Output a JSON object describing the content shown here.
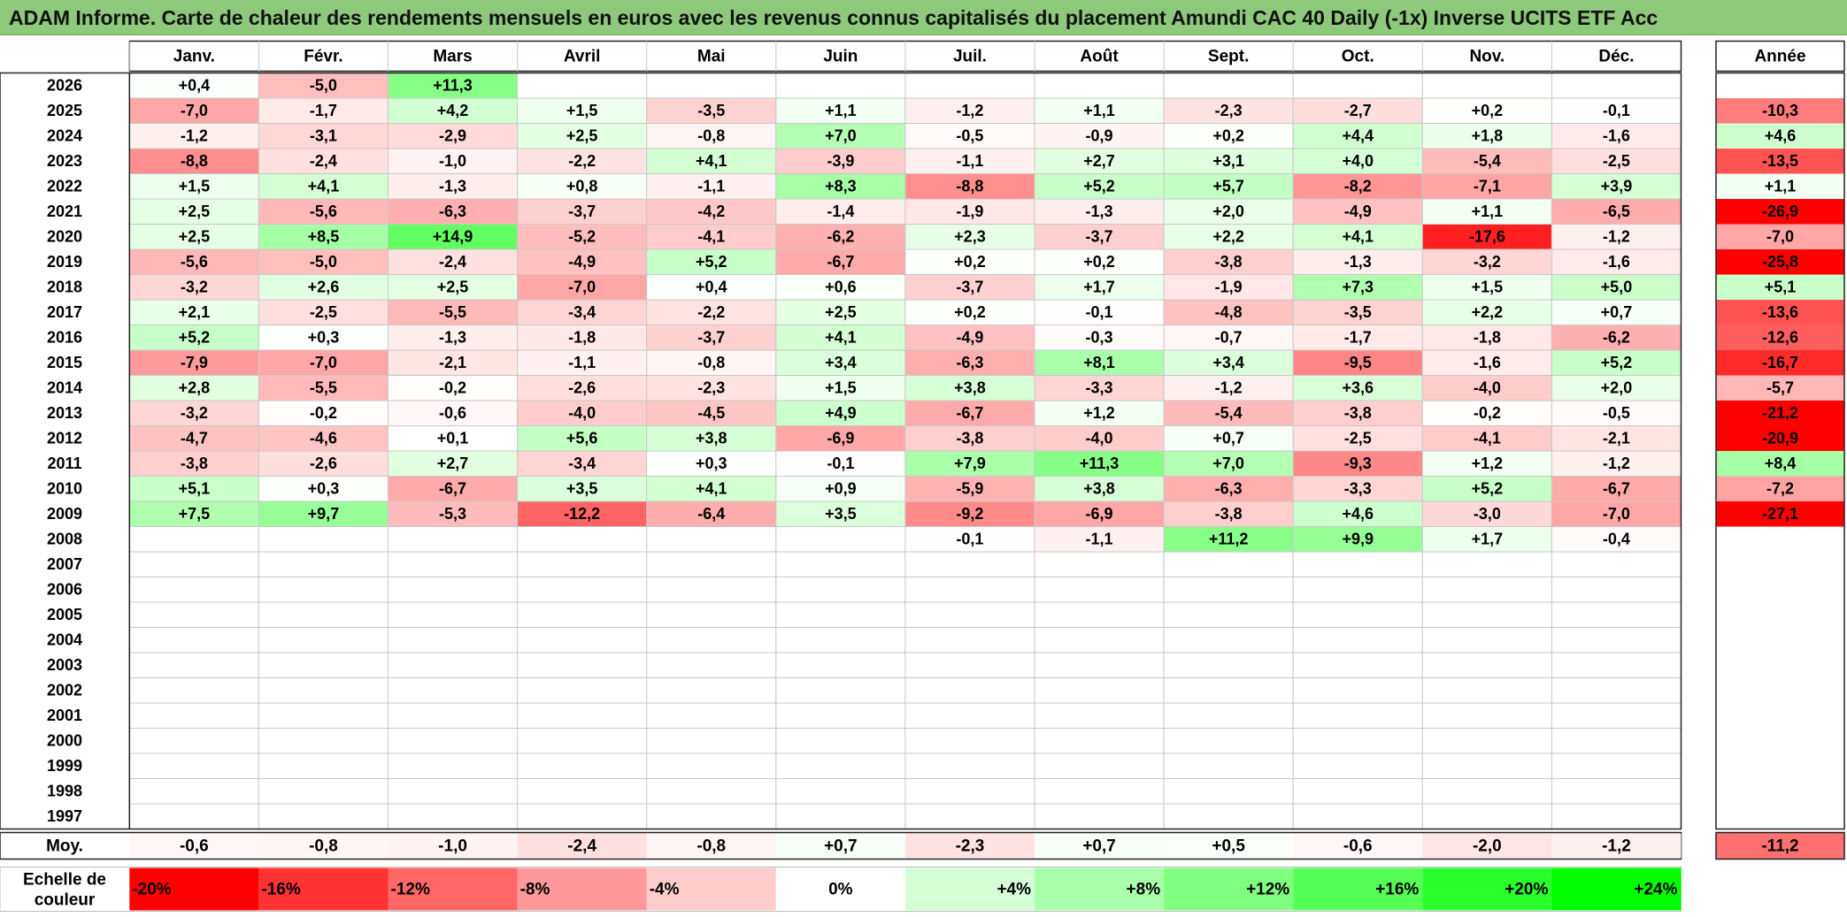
{
  "title": "ADAM Informe. Carte de chaleur des rendements mensuels en euros avec les revenus connus capitalisés du placement Amundi CAC 40 Daily (-1x) Inverse UCITS ETF Acc",
  "chart_data": {
    "type": "heatmap",
    "columns": [
      "Janv.",
      "Févr.",
      "Mars",
      "Avril",
      "Mai",
      "Juin",
      "Juil.",
      "Août",
      "Sept.",
      "Oct.",
      "Nov.",
      "Déc."
    ],
    "year_header": "Année",
    "rows": [
      {
        "year": "2026",
        "months": [
          "+0,4",
          "-5,0",
          "+11,3",
          "",
          "",
          "",
          "",
          "",
          "",
          "",
          "",
          ""
        ],
        "annual": ""
      },
      {
        "year": "2025",
        "months": [
          "-7,0",
          "-1,7",
          "+4,2",
          "+1,5",
          "-3,5",
          "+1,1",
          "-1,2",
          "+1,1",
          "-2,3",
          "-2,7",
          "+0,2",
          "-0,1"
        ],
        "annual": "-10,3"
      },
      {
        "year": "2024",
        "months": [
          "-1,2",
          "-3,1",
          "-2,9",
          "+2,5",
          "-0,8",
          "+7,0",
          "-0,5",
          "-0,9",
          "+0,2",
          "+4,4",
          "+1,8",
          "-1,6"
        ],
        "annual": "+4,6"
      },
      {
        "year": "2023",
        "months": [
          "-8,8",
          "-2,4",
          "-1,0",
          "-2,2",
          "+4,1",
          "-3,9",
          "-1,1",
          "+2,7",
          "+3,1",
          "+4,0",
          "-5,4",
          "-2,5"
        ],
        "annual": "-13,5"
      },
      {
        "year": "2022",
        "months": [
          "+1,5",
          "+4,1",
          "-1,3",
          "+0,8",
          "-1,1",
          "+8,3",
          "-8,8",
          "+5,2",
          "+5,7",
          "-8,2",
          "-7,1",
          "+3,9"
        ],
        "annual": "+1,1"
      },
      {
        "year": "2021",
        "months": [
          "+2,5",
          "-5,6",
          "-6,3",
          "-3,7",
          "-4,2",
          "-1,4",
          "-1,9",
          "-1,3",
          "+2,0",
          "-4,9",
          "+1,1",
          "-6,5"
        ],
        "annual": "-26,9"
      },
      {
        "year": "2020",
        "months": [
          "+2,5",
          "+8,5",
          "+14,9",
          "-5,2",
          "-4,1",
          "-6,2",
          "+2,3",
          "-3,7",
          "+2,2",
          "+4,1",
          "-17,6",
          "-1,2"
        ],
        "annual": "-7,0"
      },
      {
        "year": "2019",
        "months": [
          "-5,6",
          "-5,0",
          "-2,4",
          "-4,9",
          "+5,2",
          "-6,7",
          "+0,2",
          "+0,2",
          "-3,8",
          "-1,3",
          "-3,2",
          "-1,6"
        ],
        "annual": "-25,8"
      },
      {
        "year": "2018",
        "months": [
          "-3,2",
          "+2,6",
          "+2,5",
          "-7,0",
          "+0,4",
          "+0,6",
          "-3,7",
          "+1,7",
          "-1,9",
          "+7,3",
          "+1,5",
          "+5,0"
        ],
        "annual": "+5,1"
      },
      {
        "year": "2017",
        "months": [
          "+2,1",
          "-2,5",
          "-5,5",
          "-3,4",
          "-2,2",
          "+2,5",
          "+0,2",
          "-0,1",
          "-4,8",
          "-3,5",
          "+2,2",
          "+0,7"
        ],
        "annual": "-13,6"
      },
      {
        "year": "2016",
        "months": [
          "+5,2",
          "+0,3",
          "-1,3",
          "-1,8",
          "-3,7",
          "+4,1",
          "-4,9",
          "-0,3",
          "-0,7",
          "-1,7",
          "-1,8",
          "-6,2"
        ],
        "annual": "-12,6"
      },
      {
        "year": "2015",
        "months": [
          "-7,9",
          "-7,0",
          "-2,1",
          "-1,1",
          "-0,8",
          "+3,4",
          "-6,3",
          "+8,1",
          "+3,4",
          "-9,5",
          "-1,6",
          "+5,2"
        ],
        "annual": "-16,7"
      },
      {
        "year": "2014",
        "months": [
          "+2,8",
          "-5,5",
          "-0,2",
          "-2,6",
          "-2,3",
          "+1,5",
          "+3,8",
          "-3,3",
          "-1,2",
          "+3,6",
          "-4,0",
          "+2,0"
        ],
        "annual": "-5,7"
      },
      {
        "year": "2013",
        "months": [
          "-3,2",
          "-0,2",
          "-0,6",
          "-4,0",
          "-4,5",
          "+4,9",
          "-6,7",
          "+1,2",
          "-5,4",
          "-3,8",
          "-0,2",
          "-0,5"
        ],
        "annual": "-21,2"
      },
      {
        "year": "2012",
        "months": [
          "-4,7",
          "-4,6",
          "+0,1",
          "+5,6",
          "+3,8",
          "-6,9",
          "-3,8",
          "-4,0",
          "+0,7",
          "-2,5",
          "-4,1",
          "-2,1"
        ],
        "annual": "-20,9"
      },
      {
        "year": "2011",
        "months": [
          "-3,8",
          "-2,6",
          "+2,7",
          "-3,4",
          "+0,3",
          "-0,1",
          "+7,9",
          "+11,3",
          "+7,0",
          "-9,3",
          "+1,2",
          "-1,2"
        ],
        "annual": "+8,4"
      },
      {
        "year": "2010",
        "months": [
          "+5,1",
          "+0,3",
          "-6,7",
          "+3,5",
          "+4,1",
          "+0,9",
          "-5,9",
          "+3,8",
          "-6,3",
          "-3,3",
          "+5,2",
          "-6,7"
        ],
        "annual": "-7,2"
      },
      {
        "year": "2009",
        "months": [
          "+7,5",
          "+9,7",
          "-5,3",
          "-12,2",
          "-6,4",
          "+3,5",
          "-9,2",
          "-6,9",
          "-3,8",
          "+4,6",
          "-3,0",
          "-7,0"
        ],
        "annual": "-27,1"
      },
      {
        "year": "2008",
        "months": [
          "",
          "",
          "",
          "",
          "",
          "",
          "-0,1",
          "-1,1",
          "+11,2",
          "+9,9",
          "+1,7",
          "-0,4"
        ],
        "annual": ""
      },
      {
        "year": "2007",
        "months": [
          "",
          "",
          "",
          "",
          "",
          "",
          "",
          "",
          "",
          "",
          "",
          ""
        ],
        "annual": ""
      },
      {
        "year": "2006",
        "months": [
          "",
          "",
          "",
          "",
          "",
          "",
          "",
          "",
          "",
          "",
          "",
          ""
        ],
        "annual": ""
      },
      {
        "year": "2005",
        "months": [
          "",
          "",
          "",
          "",
          "",
          "",
          "",
          "",
          "",
          "",
          "",
          ""
        ],
        "annual": ""
      },
      {
        "year": "2004",
        "months": [
          "",
          "",
          "",
          "",
          "",
          "",
          "",
          "",
          "",
          "",
          "",
          ""
        ],
        "annual": ""
      },
      {
        "year": "2003",
        "months": [
          "",
          "",
          "",
          "",
          "",
          "",
          "",
          "",
          "",
          "",
          "",
          ""
        ],
        "annual": ""
      },
      {
        "year": "2002",
        "months": [
          "",
          "",
          "",
          "",
          "",
          "",
          "",
          "",
          "",
          "",
          "",
          ""
        ],
        "annual": ""
      },
      {
        "year": "2001",
        "months": [
          "",
          "",
          "",
          "",
          "",
          "",
          "",
          "",
          "",
          "",
          "",
          ""
        ],
        "annual": ""
      },
      {
        "year": "2000",
        "months": [
          "",
          "",
          "",
          "",
          "",
          "",
          "",
          "",
          "",
          "",
          "",
          ""
        ],
        "annual": ""
      },
      {
        "year": "1999",
        "months": [
          "",
          "",
          "",
          "",
          "",
          "",
          "",
          "",
          "",
          "",
          "",
          ""
        ],
        "annual": ""
      },
      {
        "year": "1998",
        "months": [
          "",
          "",
          "",
          "",
          "",
          "",
          "",
          "",
          "",
          "",
          "",
          ""
        ],
        "annual": ""
      },
      {
        "year": "1997",
        "months": [
          "",
          "",
          "",
          "",
          "",
          "",
          "",
          "",
          "",
          "",
          "",
          ""
        ],
        "annual": ""
      }
    ],
    "average": {
      "label": "Moy.",
      "months": [
        "-0,6",
        "-0,8",
        "-1,0",
        "-2,4",
        "-0,8",
        "+0,7",
        "-2,3",
        "+0,7",
        "+0,5",
        "-0,6",
        "-2,0",
        "-1,2"
      ],
      "annual": "-11,2"
    },
    "scale": {
      "label_line1": "Echelle de",
      "label_line2": "couleur",
      "labels": [
        "-20%",
        "-16%",
        "-12%",
        "-8%",
        "-4%",
        "0%",
        "+4%",
        "+8%",
        "+12%",
        "+16%",
        "+20%",
        "+24%"
      ],
      "values": [
        -20,
        -16,
        -12,
        -8,
        -4,
        0,
        4,
        8,
        12,
        16,
        20,
        24
      ]
    },
    "colors": {
      "title_bar": "#8cc97a",
      "negative_max": "#ff0000",
      "neutral": "#ffffff",
      "positive_max": "#00ff00"
    }
  }
}
